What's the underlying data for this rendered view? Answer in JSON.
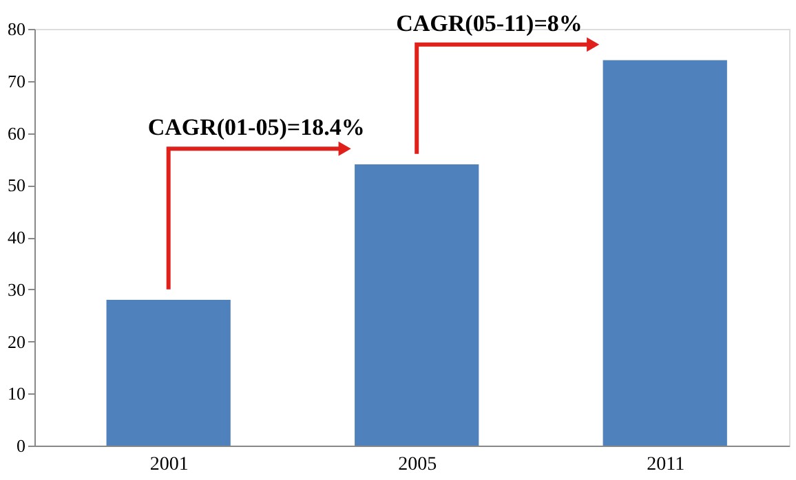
{
  "chart_data": {
    "type": "bar",
    "categories": [
      "2001",
      "2005",
      "2011"
    ],
    "values": [
      28,
      54,
      74
    ],
    "color": "#4f81bd",
    "ylim": [
      0,
      80
    ],
    "yticks": [
      0,
      10,
      20,
      30,
      40,
      50,
      60,
      70,
      80
    ],
    "grid": false,
    "annotations": [
      "CAGR(01-05)=18.4%",
      "CAGR(05-11)=8%"
    ]
  }
}
